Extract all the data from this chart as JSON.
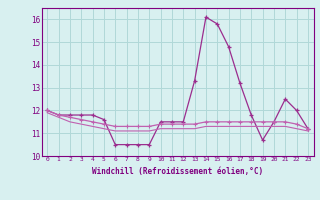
{
  "x": [
    0,
    1,
    2,
    3,
    4,
    5,
    6,
    7,
    8,
    9,
    10,
    11,
    12,
    13,
    14,
    15,
    16,
    17,
    18,
    19,
    20,
    21,
    22,
    23
  ],
  "line1": [
    12.0,
    11.8,
    11.8,
    11.8,
    11.8,
    11.6,
    10.5,
    10.5,
    10.5,
    10.5,
    11.5,
    11.5,
    11.5,
    13.3,
    16.1,
    15.8,
    14.8,
    13.2,
    11.8,
    10.7,
    11.5,
    12.5,
    12.0,
    11.2
  ],
  "line2": [
    12.0,
    11.8,
    11.7,
    11.6,
    11.5,
    11.4,
    11.3,
    11.3,
    11.3,
    11.3,
    11.4,
    11.4,
    11.4,
    11.4,
    11.5,
    11.5,
    11.5,
    11.5,
    11.5,
    11.5,
    11.5,
    11.5,
    11.4,
    11.2
  ],
  "line3": [
    11.9,
    11.7,
    11.5,
    11.4,
    11.3,
    11.2,
    11.1,
    11.1,
    11.1,
    11.1,
    11.2,
    11.2,
    11.2,
    11.2,
    11.3,
    11.3,
    11.3,
    11.3,
    11.3,
    11.3,
    11.3,
    11.3,
    11.2,
    11.1
  ],
  "line_color1": "#9b2d8e",
  "line_color2": "#c060b0",
  "bg_color": "#d8f0f0",
  "grid_color": "#b0d8d8",
  "text_color": "#800080",
  "xlabel": "Windchill (Refroidissement éolien,°C)",
  "ylim": [
    10,
    16.5
  ],
  "xlim": [
    -0.5,
    23.5
  ],
  "yticks": [
    10,
    11,
    12,
    13,
    14,
    15,
    16
  ],
  "xticks": [
    0,
    1,
    2,
    3,
    4,
    5,
    6,
    7,
    8,
    9,
    10,
    11,
    12,
    13,
    14,
    15,
    16,
    17,
    18,
    19,
    20,
    21,
    22,
    23
  ]
}
